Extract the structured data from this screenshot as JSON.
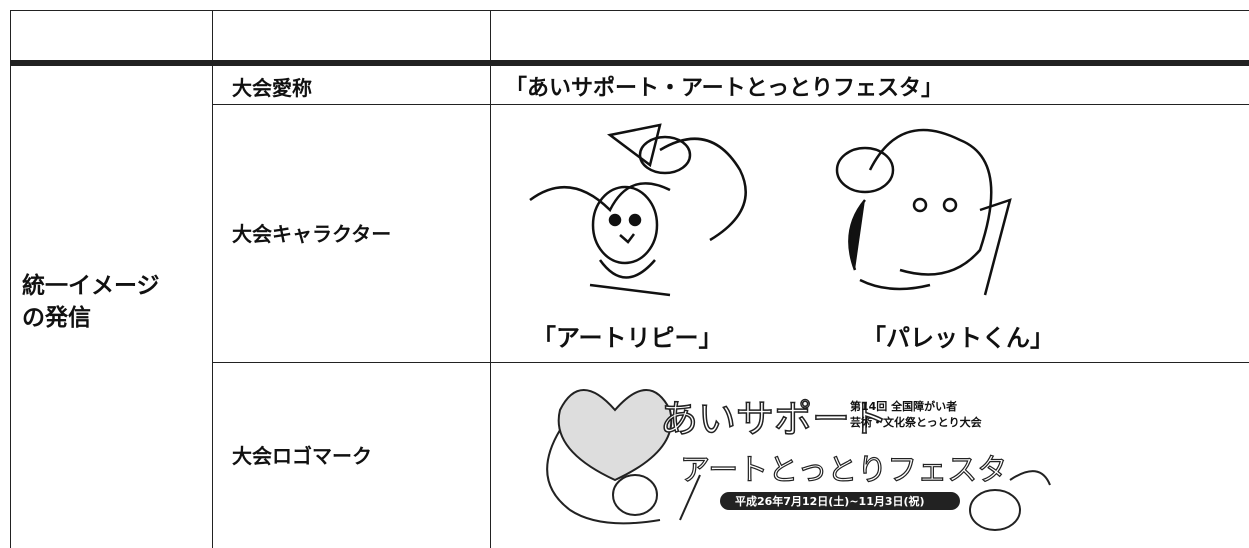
{
  "table": {
    "group": [
      "統一イメージ",
      "の発信"
    ],
    "rows": [
      {
        "label": "大会愛称",
        "content": "「あいサポート・アートとっとりフェスタ」"
      },
      {
        "label": "大会キャラクター",
        "characters": [
          "「アートリピー」",
          "「パレットくん」"
        ]
      },
      {
        "label": "大会ロゴマーク",
        "logo": {
          "title": "あいサポート",
          "subtitle": "アートとっとりフェスタ",
          "event": [
            "第14回 全国障がい者",
            "芸術・文化祭とっとり大会"
          ],
          "dates": "平成26年7月12日(土)~11月3日(祝)"
        }
      }
    ]
  }
}
